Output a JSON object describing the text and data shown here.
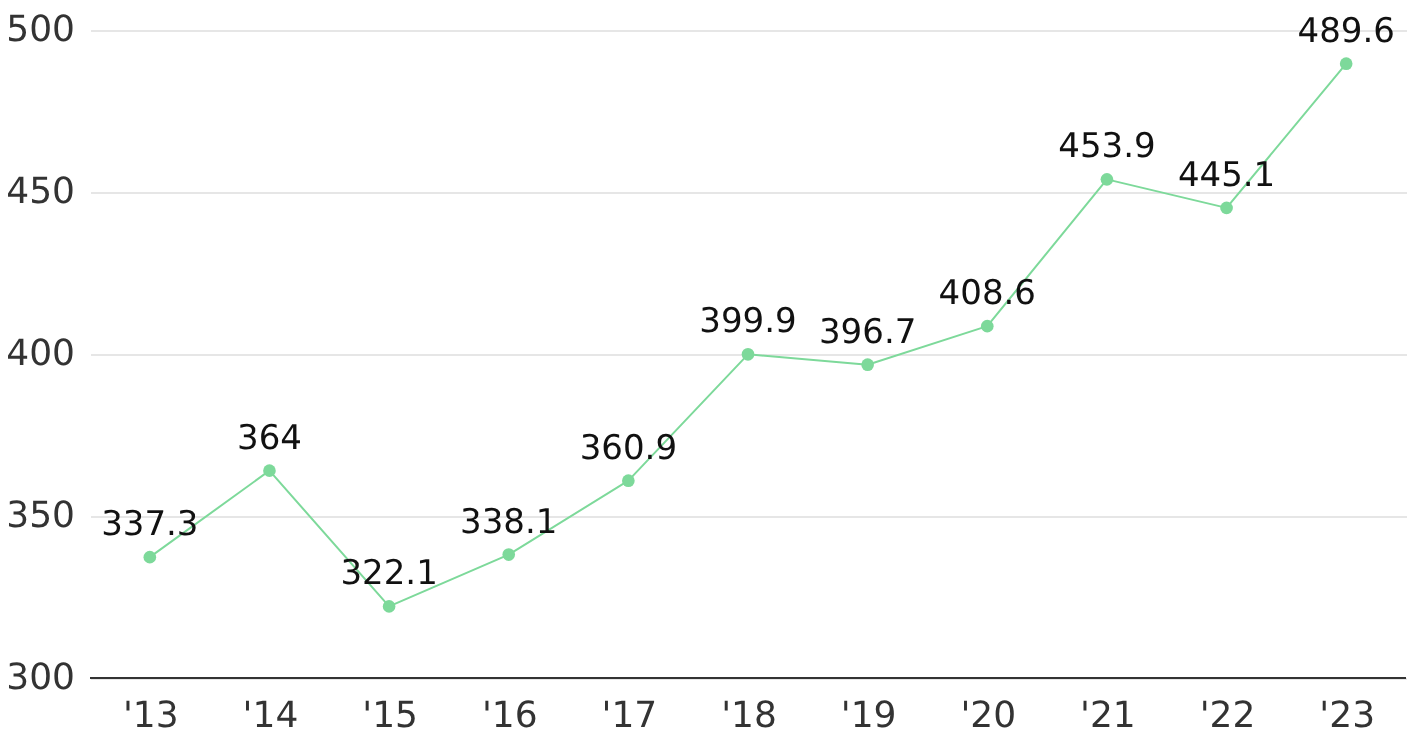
{
  "chart_data": {
    "type": "line",
    "categories": [
      "'13",
      "'14",
      "'15",
      "'16",
      "'17",
      "'18",
      "'19",
      "'20",
      "'21",
      "'22",
      "'23"
    ],
    "series": [
      {
        "color": "#7dd99a",
        "values": [
          337.3,
          364,
          322.1,
          338.1,
          360.9,
          399.9,
          396.7,
          408.6,
          453.9,
          445.1,
          489.6
        ]
      }
    ],
    "ylim": [
      300,
      500
    ],
    "yticks": [
      300,
      350,
      400,
      450,
      500
    ],
    "grid": "y",
    "marker": "circle",
    "line_style": "solid",
    "data_labels": true,
    "legend": false
  }
}
